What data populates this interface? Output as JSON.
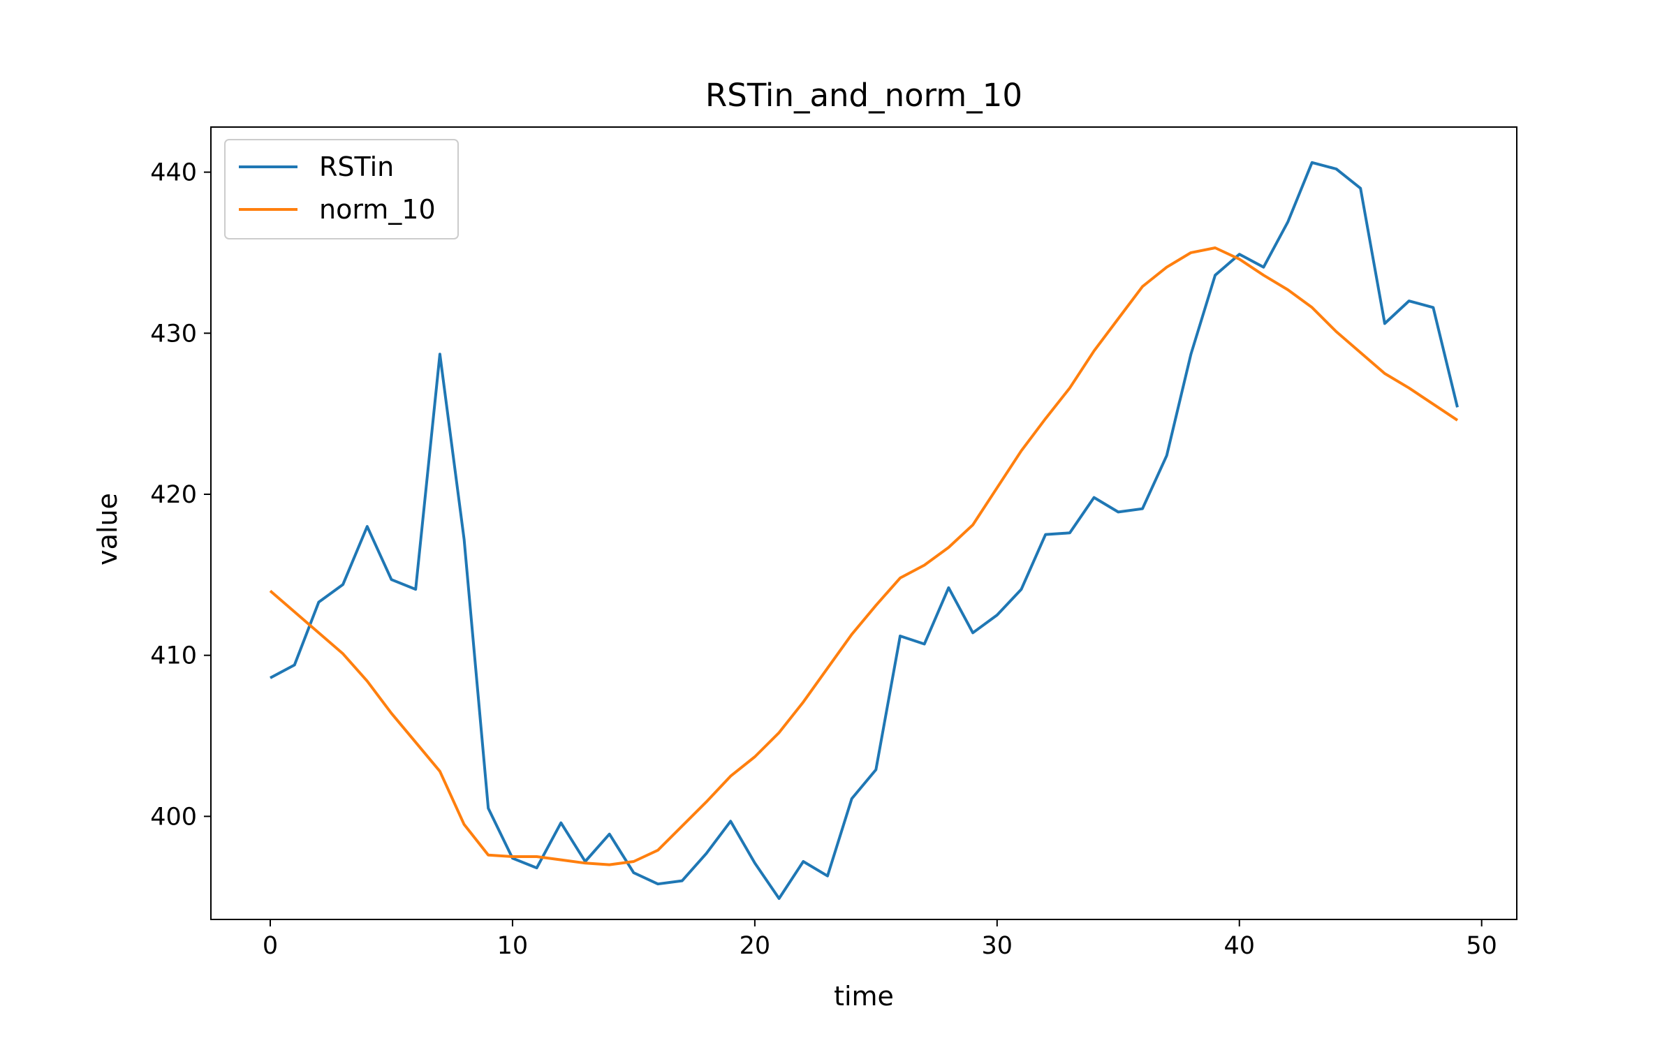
{
  "chart_data": {
    "type": "line",
    "title": "RSTin_and_norm_10",
    "xlabel": "time",
    "ylabel": "value",
    "xlim": [
      -2.45,
      51.45
    ],
    "ylim": [
      393.6,
      442.8
    ],
    "xticks": [
      0,
      10,
      20,
      30,
      40,
      50
    ],
    "yticks": [
      400,
      410,
      420,
      430,
      440
    ],
    "legend_position": "upper left",
    "grid": false,
    "x": [
      0,
      1,
      2,
      3,
      4,
      5,
      6,
      7,
      8,
      9,
      10,
      11,
      12,
      13,
      14,
      15,
      16,
      17,
      18,
      19,
      20,
      21,
      22,
      23,
      24,
      25,
      26,
      27,
      28,
      29,
      30,
      31,
      32,
      33,
      34,
      35,
      36,
      37,
      38,
      39,
      40,
      41,
      42,
      43,
      44,
      45,
      46,
      47,
      48,
      49
    ],
    "series": [
      {
        "name": "RSTin",
        "color": "#1f77b4",
        "values": [
          408.6,
          409.4,
          413.3,
          414.4,
          418.0,
          414.7,
          414.1,
          428.7,
          417.2,
          400.5,
          397.4,
          396.8,
          399.6,
          397.2,
          398.9,
          396.5,
          395.8,
          396.0,
          397.7,
          399.7,
          397.1,
          394.9,
          397.2,
          396.3,
          401.1,
          402.9,
          411.2,
          410.7,
          414.2,
          411.4,
          412.5,
          414.1,
          417.5,
          417.6,
          419.8,
          418.9,
          419.1,
          422.4,
          428.7,
          433.6,
          434.9,
          434.1,
          436.9,
          440.6,
          440.2,
          439.0,
          430.6,
          432.0,
          431.6,
          425.4
        ]
      },
      {
        "name": "norm_10",
        "color": "#ff7f0e",
        "values": [
          414.0,
          412.7,
          411.4,
          410.1,
          408.4,
          406.4,
          404.6,
          402.8,
          399.5,
          397.6,
          397.5,
          397.5,
          397.3,
          397.1,
          397.0,
          397.2,
          397.9,
          399.4,
          400.9,
          402.5,
          403.7,
          405.2,
          407.1,
          409.2,
          411.3,
          413.1,
          414.8,
          415.6,
          416.7,
          418.1,
          420.4,
          422.7,
          424.7,
          426.6,
          428.9,
          430.9,
          432.9,
          434.1,
          435.0,
          435.3,
          434.6,
          433.6,
          432.7,
          431.6,
          430.1,
          428.8,
          427.5,
          426.6,
          425.6,
          424.6
        ]
      }
    ]
  }
}
